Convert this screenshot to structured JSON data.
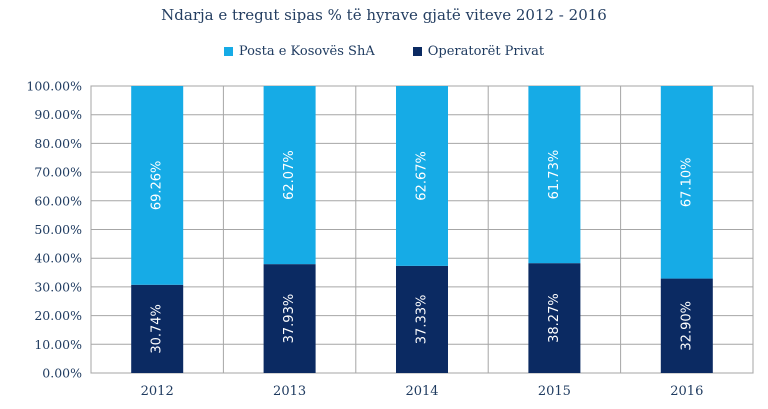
{
  "chart_data": {
    "type": "bar",
    "stacked": true,
    "title": "Ndarja e tregut sipas % të hyrave gjatë viteve 2012 - 2016",
    "categories": [
      "2012",
      "2013",
      "2014",
      "2015",
      "2016"
    ],
    "series": [
      {
        "name": "Operatorët Privat",
        "color": "#0b2a62",
        "values": [
          30.74,
          37.93,
          37.33,
          38.27,
          32.9
        ],
        "labels": [
          "30.74%",
          "37.93%",
          "37.33%",
          "38.27%",
          "32.90%"
        ]
      },
      {
        "name": "Posta e Kosovës ShA",
        "color": "#16abe6",
        "values": [
          69.26,
          62.07,
          62.67,
          61.73,
          67.1
        ],
        "labels": [
          "69.26%",
          "62.07%",
          "62.67%",
          "61.73%",
          "67.10%"
        ]
      }
    ],
    "legend_order": [
      "Posta e Kosovës ShA",
      "Operatorët Privat"
    ],
    "ylim": [
      0,
      100
    ],
    "yticks": [
      0,
      10,
      20,
      30,
      40,
      50,
      60,
      70,
      80,
      90,
      100
    ],
    "ytick_labels": [
      "0.00%",
      "10.00%",
      "20.00%",
      "30.00%",
      "40.00%",
      "50.00%",
      "60.00%",
      "70.00%",
      "80.00%",
      "90.00%",
      "100.00%"
    ],
    "xlabel": "",
    "ylabel": "",
    "grid": true,
    "legend_position": "top-center"
  }
}
